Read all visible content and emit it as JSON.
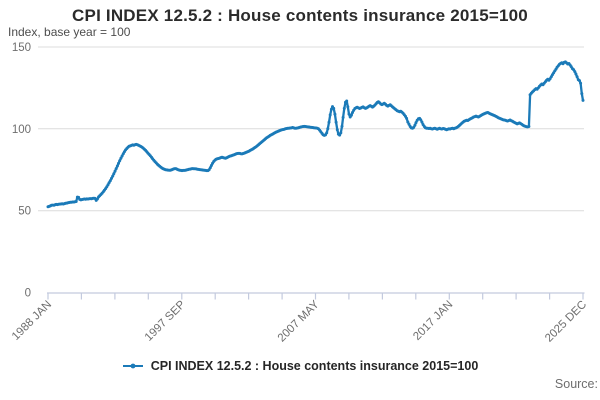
{
  "chart": {
    "title": "CPI INDEX 12.5.2 : House contents insurance 2015=100",
    "subtitle": "Index, base year = 100",
    "legend_label": "CPI INDEX 12.5.2 : House contents insurance 2015=100",
    "source_label": "Source:",
    "colors": {
      "line": "#1b7ab8",
      "grid": "#dcdcdc",
      "axis": "#c3cade",
      "title": "#2b2b2b",
      "muted": "#6e6e6e"
    }
  },
  "chart_data": {
    "type": "line",
    "title": "CPI INDEX 12.5.2 : House contents insurance 2015=100",
    "subtitle": "Index, base year = 100",
    "xlabel": "",
    "ylabel": "Index, base year = 100",
    "frequency": "monthly",
    "x_start": "1988 JAN",
    "x_end": "2025 DEC",
    "x_tick_labels": [
      "1988 JAN",
      "1997 SEP",
      "2007 MAY",
      "2017 JAN",
      "2025 DEC"
    ],
    "y_ticks": [
      0,
      50,
      100,
      150
    ],
    "ylim": [
      0,
      150
    ],
    "minor_x_tick_count": 17,
    "grid": "horizontal",
    "legend_position": "bottom",
    "series": [
      {
        "name": "CPI INDEX 12.5.2 : House contents insurance 2015=100",
        "values": [
          52.4,
          52.6,
          52.9,
          53.3,
          53.4,
          53.3,
          53.6,
          53.8,
          53.7,
          53.9,
          54.0,
          54.1,
          54.2,
          54.1,
          54.3,
          54.5,
          54.6,
          54.8,
          55.0,
          55.1,
          55.2,
          55.3,
          55.3,
          55.4,
          55.6,
          58.3,
          58.1,
          56.9,
          56.6,
          56.8,
          57.0,
          57.1,
          57.0,
          57.2,
          57.1,
          57.3,
          57.4,
          57.3,
          57.5,
          57.6,
          57.5,
          56.3,
          57.1,
          58.4,
          59.1,
          59.9,
          60.7,
          61.6,
          62.5,
          63.5,
          64.6,
          65.8,
          67.0,
          68.3,
          69.7,
          71.1,
          72.6,
          74.1,
          75.7,
          77.3,
          78.9,
          80.5,
          82.0,
          83.4,
          84.8,
          86.0,
          87.1,
          88.0,
          88.8,
          89.3,
          89.6,
          89.9,
          90.2,
          90.0,
          90.3,
          90.5,
          90.3,
          90.0,
          89.6,
          89.2,
          88.8,
          88.2,
          87.5,
          86.8,
          86.0,
          85.2,
          84.4,
          83.5,
          82.6,
          81.7,
          80.8,
          80.0,
          79.2,
          78.4,
          77.7,
          77.1,
          76.5,
          76.0,
          75.6,
          75.3,
          75.0,
          74.9,
          74.8,
          74.7,
          74.7,
          74.9,
          75.2,
          75.5,
          75.7,
          75.6,
          75.2,
          74.9,
          74.7,
          74.6,
          74.5,
          74.6,
          74.6,
          74.7,
          74.9,
          75.1,
          75.3,
          75.4,
          75.6,
          75.7,
          75.6,
          75.6,
          75.5,
          75.3,
          75.2,
          75.1,
          75.0,
          74.9,
          74.8,
          74.7,
          74.6,
          74.5,
          74.5,
          75.0,
          76.2,
          77.6,
          79.0,
          80.1,
          80.9,
          81.4,
          81.7,
          81.9,
          82.1,
          82.4,
          82.6,
          82.4,
          82.2,
          82.0,
          82.3,
          82.7,
          83.1,
          83.4,
          83.6,
          83.8,
          84.1,
          84.4,
          84.7,
          84.9,
          85.0,
          85.0,
          84.8,
          84.7,
          84.9,
          85.2,
          85.5,
          85.8,
          86.1,
          86.4,
          86.8,
          87.2,
          87.6,
          88.1,
          88.6,
          89.1,
          89.7,
          90.3,
          90.9,
          91.5,
          92.1,
          92.7,
          93.3,
          93.9,
          94.5,
          95.0,
          95.5,
          96.0,
          96.4,
          96.8,
          97.2,
          97.6,
          98.0,
          98.3,
          98.6,
          98.9,
          99.2,
          99.4,
          99.6,
          99.8,
          100.0,
          100.2,
          100.3,
          100.4,
          100.5,
          100.6,
          100.8,
          100.6,
          100.4,
          100.3,
          100.5,
          100.7,
          100.9,
          101.1,
          101.3,
          101.4,
          101.5,
          101.4,
          101.3,
          101.2,
          101.1,
          101.0,
          100.9,
          100.8,
          100.7,
          100.6,
          100.5,
          100.3,
          100.0,
          99.2,
          98.2,
          97.2,
          96.4,
          96.0,
          96.3,
          97.5,
          100.0,
          104.0,
          108.5,
          112.0,
          113.6,
          112.5,
          109.0,
          104.0,
          99.5,
          96.8,
          96.2,
          97.5,
          101.5,
          107.0,
          112.5,
          116.2,
          117.0,
          113.5,
          109.0,
          107.2,
          108.3,
          110.0,
          111.4,
          112.4,
          112.9,
          113.2,
          112.8,
          112.4,
          112.7,
          113.1,
          113.4,
          112.9,
          112.5,
          112.8,
          113.3,
          113.8,
          114.2,
          113.7,
          113.3,
          113.8,
          114.5,
          115.3,
          116.1,
          116.5,
          115.9,
          115.2,
          114.8,
          115.2,
          115.6,
          115.0,
          114.3,
          113.9,
          114.3,
          114.7,
          114.1,
          113.4,
          112.8,
          112.2,
          111.6,
          111.1,
          110.7,
          110.4,
          110.7,
          110.2,
          109.5,
          108.6,
          107.6,
          106.4,
          104.2,
          102.8,
          101.4,
          100.6,
          100.3,
          100.9,
          102.2,
          103.8,
          105.2,
          106.1,
          106.4,
          105.6,
          104.2,
          102.6,
          101.4,
          100.7,
          100.4,
          100.3,
          100.2,
          100.4,
          100.1,
          99.9,
          100.2,
          100.4,
          100.1,
          99.8,
          100.0,
          100.3,
          100.1,
          99.9,
          100.2,
          100.0,
          99.7,
          99.5,
          99.8,
          100.1,
          99.9,
          100.2,
          100.4,
          100.1,
          100.3,
          100.6,
          101.0,
          101.5,
          102.1,
          102.8,
          103.5,
          104.1,
          104.6,
          105.0,
          105.3,
          105.1,
          105.5,
          106.0,
          106.4,
          106.8,
          107.2,
          107.5,
          107.8,
          107.5,
          107.2,
          107.6,
          108.1,
          108.5,
          108.9,
          109.2,
          109.5,
          109.8,
          110.0,
          109.6,
          109.2,
          108.9,
          108.6,
          108.3,
          108.0,
          107.6,
          107.2,
          106.8,
          106.5,
          106.2,
          105.9,
          105.6,
          105.4,
          105.2,
          105.0,
          104.8,
          105.1,
          105.4,
          105.0,
          104.6,
          104.2,
          103.8,
          103.4,
          103.0,
          103.3,
          103.6,
          103.2,
          102.7,
          102.2,
          101.8,
          101.5,
          101.3,
          101.2,
          101.4,
          120.8,
          121.8,
          122.5,
          123.2,
          124.0,
          124.6,
          124.2,
          125.0,
          126.0,
          126.8,
          127.4,
          126.9,
          127.8,
          128.8,
          129.6,
          130.3,
          129.7,
          130.6,
          131.8,
          133.0,
          134.2,
          135.4,
          136.5,
          137.6,
          138.6,
          139.4,
          140.0,
          140.4,
          139.8,
          140.6,
          140.9,
          140.3,
          139.6,
          139.9,
          139.0,
          138.0,
          136.8,
          136.2,
          135.0,
          133.5,
          131.8,
          130.0,
          129.5,
          127.8,
          121.5,
          117.4
        ]
      }
    ]
  }
}
